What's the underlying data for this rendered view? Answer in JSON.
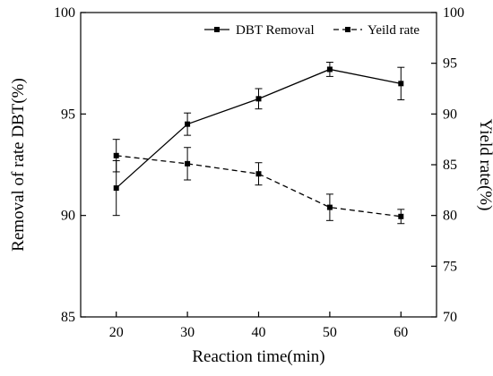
{
  "chart_data": {
    "type": "line",
    "x": [
      20,
      30,
      40,
      50,
      60
    ],
    "xlabel": "Reaction time(min)",
    "ylabel_left": "Removal of rate DBT(%)",
    "ylabel_right": "Yield rate(%)",
    "xlim": [
      15,
      65
    ],
    "ylim_left": [
      85,
      100
    ],
    "ylim_right": [
      70,
      100
    ],
    "x_ticks": [
      20,
      30,
      40,
      50,
      60
    ],
    "y_ticks_left": [
      85,
      90,
      95,
      100
    ],
    "y_ticks_right": [
      70,
      75,
      80,
      85,
      90,
      95,
      100
    ],
    "grid": false,
    "legend_position": "top-right",
    "series": [
      {
        "name": "DBT Removal",
        "axis": "left",
        "style": "solid",
        "marker": "square",
        "values": [
          91.35,
          94.5,
          95.75,
          97.2,
          96.5
        ],
        "errors": [
          1.35,
          0.55,
          0.5,
          0.35,
          0.8
        ]
      },
      {
        "name": "Yeild rate",
        "axis": "right",
        "style": "dashed",
        "marker": "square",
        "values": [
          85.9,
          85.1,
          84.1,
          80.8,
          79.9
        ],
        "errors": [
          1.6,
          1.6,
          1.1,
          1.3,
          0.7
        ]
      }
    ],
    "colors": {
      "line": "#000000",
      "background": "#ffffff"
    }
  }
}
